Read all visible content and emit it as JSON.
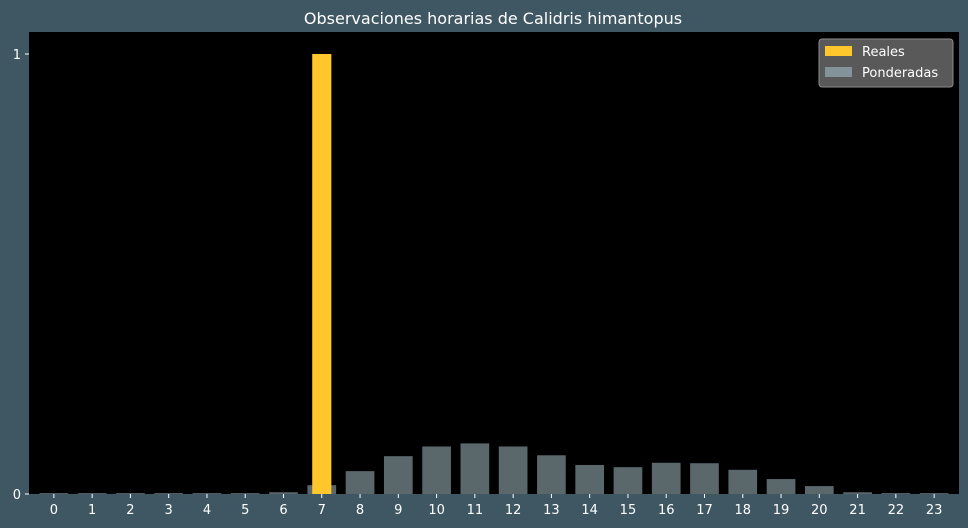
{
  "chart_data": {
    "type": "bar",
    "title": "Observaciones horarias de Calidris himantopus",
    "xlabel": "",
    "ylabel": "",
    "categories": [
      "0",
      "1",
      "2",
      "3",
      "4",
      "5",
      "6",
      "7",
      "8",
      "9",
      "10",
      "11",
      "12",
      "13",
      "14",
      "15",
      "16",
      "17",
      "18",
      "19",
      "20",
      "21",
      "22",
      "23"
    ],
    "series": [
      {
        "name": "Reales",
        "color": "#ffc72c",
        "values": [
          0,
          0,
          0,
          0,
          0,
          0,
          0,
          1,
          0,
          0,
          0,
          0,
          0,
          0,
          0,
          0,
          0,
          0,
          0,
          0,
          0,
          0,
          0,
          0
        ]
      },
      {
        "name": "Ponderadas",
        "color": "#8a9ea5",
        "values": [
          0.002,
          0.002,
          0.002,
          0.002,
          0.002,
          0.002,
          0.004,
          0.02,
          0.052,
          0.086,
          0.108,
          0.115,
          0.108,
          0.088,
          0.066,
          0.061,
          0.071,
          0.07,
          0.055,
          0.034,
          0.018,
          0.004,
          0.002,
          0.002
        ]
      }
    ],
    "yticks": [
      0,
      1
    ],
    "ylim": [
      0,
      1.05
    ],
    "grid": false,
    "legend": "top-right",
    "plot_background": "#000000",
    "figure_background": "#3f5763"
  }
}
